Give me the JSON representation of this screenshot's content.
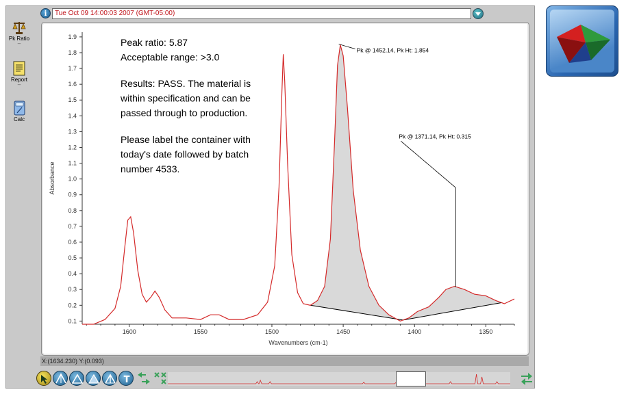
{
  "header": {
    "timestamp": "Tue Oct 09 14:00:03 2007 (GMT-05:00)"
  },
  "toolbar": {
    "items": [
      {
        "label": "Pk Ratio",
        "icon": "balance-icon"
      },
      {
        "label": "Report",
        "icon": "report-icon"
      },
      {
        "label": "Calc",
        "icon": "calculator-icon"
      }
    ]
  },
  "result_text": {
    "line1": "Peak ratio: 5.87",
    "line2": "Acceptable range: >3.0",
    "line3": "Results: PASS.  The material is",
    "line4": "within specification and can be",
    "line5": "passed through to production.",
    "line6": "Please label the container with",
    "line7": "today's date followed by batch",
    "line8": "number 4533."
  },
  "status": {
    "cursor": "X:(1634.230)  Y:(0.093)"
  },
  "colors": {
    "spectrum": "#d42a2a",
    "fill": "#d9d9d9",
    "timestamp_text": "#c0141b"
  },
  "chart_data": {
    "type": "line",
    "xlabel": "Wavenumbers (cm-1)",
    "ylabel": "Absorbance",
    "x_ticks": [
      1600,
      1550,
      1500,
      1450,
      1400,
      1350
    ],
    "y_ticks": [
      0.1,
      0.2,
      0.3,
      0.4,
      0.5,
      0.6,
      0.7,
      0.8,
      0.9,
      1.0,
      1.1,
      1.2,
      1.3,
      1.4,
      1.5,
      1.6,
      1.7,
      1.8,
      1.9
    ],
    "xlim": [
      1633,
      1330
    ],
    "ylim": [
      0.08,
      1.93
    ],
    "x_reversed": true,
    "series": [
      {
        "points": [
          [
            1633,
            0.08
          ],
          [
            1625,
            0.08
          ],
          [
            1617,
            0.11
          ],
          [
            1610,
            0.18
          ],
          [
            1606,
            0.32
          ],
          [
            1603,
            0.58
          ],
          [
            1601,
            0.74
          ],
          [
            1599,
            0.76
          ],
          [
            1597,
            0.66
          ],
          [
            1594,
            0.42
          ],
          [
            1591,
            0.27
          ],
          [
            1588,
            0.22
          ],
          [
            1585,
            0.25
          ],
          [
            1582,
            0.29
          ],
          [
            1579,
            0.25
          ],
          [
            1575,
            0.17
          ],
          [
            1570,
            0.12
          ],
          [
            1560,
            0.12
          ],
          [
            1550,
            0.11
          ],
          [
            1543,
            0.14
          ],
          [
            1537,
            0.14
          ],
          [
            1530,
            0.11
          ],
          [
            1520,
            0.11
          ],
          [
            1510,
            0.14
          ],
          [
            1503,
            0.22
          ],
          [
            1498,
            0.45
          ],
          [
            1495,
            0.95
          ],
          [
            1493,
            1.55
          ],
          [
            1492,
            1.79
          ],
          [
            1491,
            1.62
          ],
          [
            1489,
            1.1
          ],
          [
            1486,
            0.52
          ],
          [
            1482,
            0.28
          ],
          [
            1478,
            0.21
          ],
          [
            1473,
            0.2
          ],
          [
            1468,
            0.23
          ],
          [
            1463,
            0.32
          ],
          [
            1459,
            0.62
          ],
          [
            1456,
            1.25
          ],
          [
            1454,
            1.72
          ],
          [
            1452,
            1.85
          ],
          [
            1450,
            1.78
          ],
          [
            1447,
            1.45
          ],
          [
            1443,
            0.93
          ],
          [
            1438,
            0.55
          ],
          [
            1432,
            0.32
          ],
          [
            1425,
            0.2
          ],
          [
            1418,
            0.14
          ],
          [
            1410,
            0.1
          ],
          [
            1404,
            0.12
          ],
          [
            1398,
            0.16
          ],
          [
            1390,
            0.19
          ],
          [
            1383,
            0.25
          ],
          [
            1378,
            0.3
          ],
          [
            1372,
            0.32
          ],
          [
            1365,
            0.3
          ],
          [
            1358,
            0.27
          ],
          [
            1350,
            0.26
          ],
          [
            1343,
            0.23
          ],
          [
            1337,
            0.21
          ],
          [
            1330,
            0.24
          ]
        ]
      }
    ],
    "annotations": [
      {
        "text": "Pk @ 1452.14, Pk Ht: 1.854",
        "peak_x": 1452.14,
        "peak_y": 1.854
      },
      {
        "text": "Pk @ 1371.14, Pk Ht: 0.315",
        "peak_x": 1371.14,
        "peak_y": 0.315
      }
    ]
  }
}
